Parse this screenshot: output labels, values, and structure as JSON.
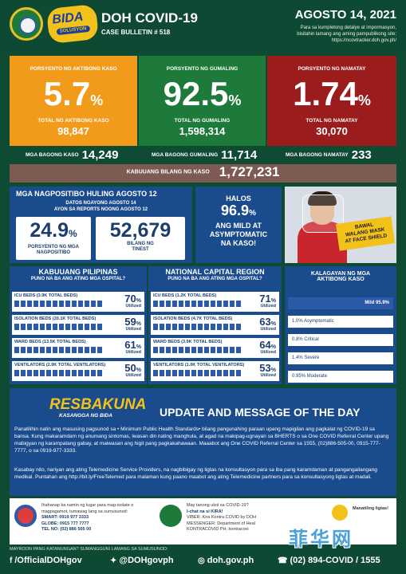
{
  "header": {
    "title": "DOH COVID-19",
    "bulletin": "CASE BULLETIN # 518",
    "date": "AGOSTO 14, 2021",
    "info_line1": "Para sa kumpletong detalye at impormasyon,",
    "info_line2": "bisitahin lamang ang aming pampublikong site:",
    "info_url": "https://ncovtracker.doh.gov.ph/",
    "logo_text": "BIDA",
    "logo_sub": "SOLUSYON"
  },
  "stats": {
    "active": {
      "label": "PORSYENTO NG AKTIBONG KASO",
      "pct": "5.7",
      "pct_sign": "%",
      "sub": "TOTAL NG AKTIBONG KASO",
      "value": "98,847",
      "color": "#f29a1a"
    },
    "recovered": {
      "label": "PORSYENTO NG GUMALING",
      "pct": "92.5",
      "pct_sign": "%",
      "sub": "TOTAL NG GUMALING",
      "value": "1,598,314",
      "color": "#1d7a3a"
    },
    "deaths": {
      "label": "PORSYENTO NG NAMATAY",
      "pct": "1.74",
      "pct_sign": "%",
      "sub": "TOTAL NG NAMATAY",
      "value": "30,070",
      "color": "#9b1c1c"
    }
  },
  "new_counts": {
    "cases_label": "MGA BAGONG KASO",
    "cases": "14,249",
    "recovered_label": "MGA BAGONG GUMALING",
    "recovered": "11,714",
    "deaths_label": "MGA BAGONG NAMATAY",
    "deaths": "233"
  },
  "total": {
    "label": "KABUUANG BILANG NG KASO",
    "value": "1,727,231"
  },
  "positivity": {
    "title": "MGA NAGPOSITIBO HULING AGOSTO 12",
    "subtitle1": "DATOS NGAYONG AGOSTO 14",
    "subtitle2": "AYON SA REPORTS NOONG AGOSTO 12",
    "rate": "24.9",
    "rate_sign": "%",
    "rate_caption1": "PORSYENTO NG MGA",
    "rate_caption2": "NAGPOSITIBO",
    "tested": "52,679",
    "tested_caption1": "BILANG NG",
    "tested_caption2": "TINEST"
  },
  "halos": {
    "line1": "HALOS",
    "pct": "96.9",
    "pct_sign": "%",
    "line2": "ANG MILD AT",
    "line3": "ASYMPTOMATIC",
    "line4": "NA KASO!"
  },
  "mask_banner": {
    "line1": "BAWAL",
    "line2": "WALANG MASK",
    "line3": "AT FACE SHIELD"
  },
  "hospital_ph": {
    "title": "KABUUANG PILIPINAS",
    "subtitle": "PUNO NA BA ANG ATING MGA OSPITAL?",
    "rows": [
      {
        "label": "ICU BEDS (3.9K TOTAL BEDS)",
        "pct": "70",
        "unit": "Utilized"
      },
      {
        "label": "ISOLATION BEDS (20.1K TOTAL BEDS)",
        "pct": "59",
        "unit": "Utilized"
      },
      {
        "label": "WARD BEDS (13.5K TOTAL BEDS)",
        "pct": "61",
        "unit": "Utilized"
      },
      {
        "label": "VENTILATORS (2.9K TOTAL VENTILATORS)",
        "pct": "50",
        "unit": "Utilized"
      }
    ]
  },
  "hospital_ncr": {
    "title": "NATIONAL CAPITAL REGION",
    "subtitle": "PUNO NA BA ANG ATING MGA OSPITAL?",
    "rows": [
      {
        "label": "ICU BEDS (1.2K TOTAL BEDS)",
        "pct": "71",
        "unit": "Utilized"
      },
      {
        "label": "ISOLATION BEDS (4.7K TOTAL BEDS)",
        "pct": "63",
        "unit": "Utilized"
      },
      {
        "label": "WARD BEDS (3.9K TOTAL BEDS)",
        "pct": "64",
        "unit": "Utilized"
      },
      {
        "label": "VENTILATORS (1.0K TOTAL VENTILATORS)",
        "pct": "53",
        "unit": "Utilized"
      }
    ]
  },
  "severity": {
    "title1": "KALAGAYAN NG MGA",
    "title2": "AKTIBONG KASO",
    "items": [
      "Mild 95.9%",
      "1.0% Asymptomatic",
      "0.8% Critical",
      "1.4% Severe",
      "0.95% Moderate"
    ]
  },
  "update": {
    "brand": "RESBAKUNA",
    "brand_sub": "KASANGGA NG BIDA",
    "title": "UPDATE AND MESSAGE OF THE DAY",
    "para1": "Panatilihin natin ang masusing pagsunod sa • Minimum Public Health Standards• bilang pangunahing paraan upang mapigilan ang pagkalat ng COVID-19 sa bansa. Kung makaramdam ng anumang sintomas, iwasan din nating manghula, at agad na makipag-ugnayan sa BHERTS o sa One COVID Referral Center upang mabigyan ng karampatang gabay, at maiwasan ang higit pang pagkakahawaan. Maaabot ang One COVID Referral Center sa 1555, (02)886-505-00, 0915-777-7777, o sa 0919-977-3333.",
    "para2": "Kasabay nito, nariyan ang ating Telemedicine Service Providers, na nagbibigay ng ligtas na konsultasyon para sa iba pang karamdaman at pangangailangang medikal. Puntahan ang http://bit.ly/FreeTelemed para malaman kung paano maabot ang ating Telemedicine partners para sa konsultasyong ligtas at madali."
  },
  "contacts": {
    "c1_line1": "Ihahanap ka namin ng lugar para mag-isolate o",
    "c1_line2": "magpagamot, tumawag lang sa sumusunod:",
    "c1_smart": "SMART: 0919 977 3333",
    "c1_globe": "GLOBE: 0915 777 7777",
    "c1_tel": "TEL NO: (02) 886 505 00",
    "c2_line1": "May tanong ukol sa COVID-19?",
    "c2_line2": "I-chat na si KIRA!",
    "c2_viber": "VIBER: Kira Kontra COVID by DOH",
    "c2_messenger": "MESSENGER: Department of Heal",
    "c2_kontra": "KONTRACOVID PH: kontracovi",
    "c3_line1": "Manatiling ligtas!"
  },
  "footer": {
    "question": "MAYROON PANG KATANUNGAN? SUMANGGUNI LAMANG SA SUMUSUNOD:",
    "facebook": "/OfficialDOHgov",
    "twitter": "@DOHgovph",
    "web": "doh.gov.ph",
    "phone": "(02) 894-COVID / 1555"
  },
  "watermark": "菲华网"
}
